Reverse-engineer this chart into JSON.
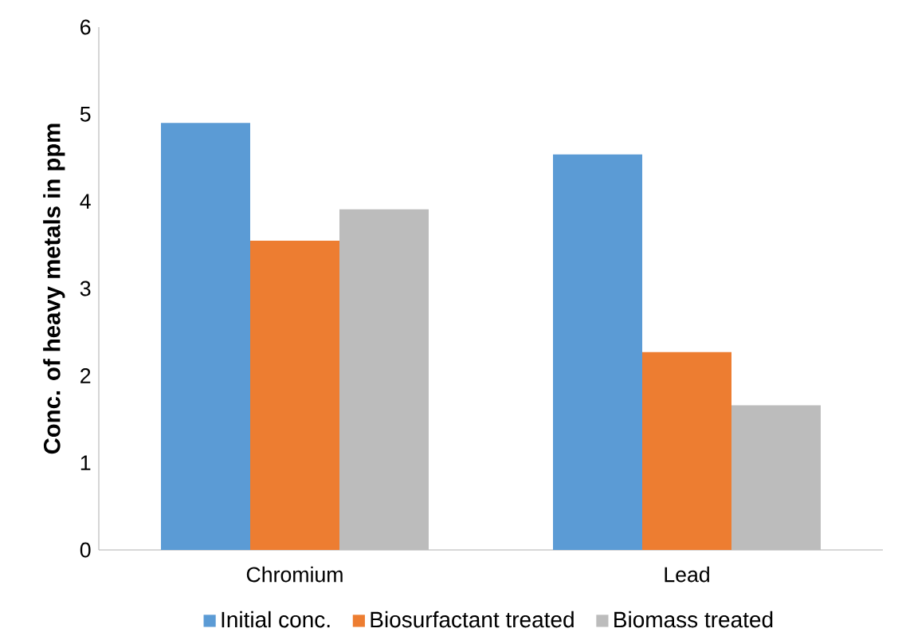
{
  "chart_data": {
    "type": "bar",
    "ylabel": "Conc. of heavy metals in ppm",
    "categories": [
      "Chromium",
      "Lead"
    ],
    "series": [
      {
        "name": "Initial conc.",
        "color": "#5b9bd5",
        "values": [
          4.9,
          4.54
        ]
      },
      {
        "name": "Biosurfactant treated",
        "color": "#ed7d31",
        "values": [
          3.55,
          2.27
        ]
      },
      {
        "name": "Biomass treated",
        "color": "#bcbcbc",
        "values": [
          3.91,
          1.66
        ]
      }
    ],
    "ylim": [
      0,
      6
    ],
    "yticks": [
      0,
      1,
      2,
      3,
      4,
      5,
      6
    ],
    "legend": "bottom"
  }
}
